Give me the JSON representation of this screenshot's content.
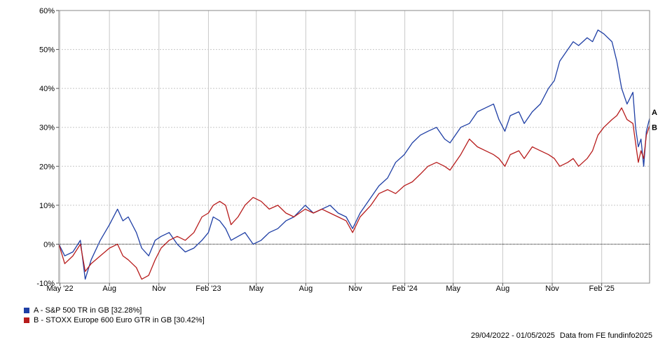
{
  "chart_data": {
    "type": "line",
    "xlim": [
      "2022-04-29",
      "2025-05-01"
    ],
    "ylim": [
      -10,
      60
    ],
    "y_ticks": [
      -10,
      0,
      10,
      20,
      30,
      40,
      50,
      60
    ],
    "y_tick_labels": [
      "-10%",
      "0%",
      "10%",
      "20%",
      "30%",
      "40%",
      "50%",
      "60%"
    ],
    "x_ticks": [
      "2022-05-01",
      "2022-08-01",
      "2022-11-01",
      "2023-02-01",
      "2023-05-01",
      "2023-08-01",
      "2023-11-01",
      "2024-02-01",
      "2024-05-01",
      "2024-08-01",
      "2024-11-01",
      "2025-02-01"
    ],
    "x_tick_labels": [
      "May '22",
      "Aug",
      "Nov",
      "Feb '23",
      "May",
      "Aug",
      "Nov",
      "Feb '24",
      "May",
      "Aug",
      "Nov",
      "Feb '25"
    ],
    "grid": true,
    "legend_position": "bottom-left",
    "series": [
      {
        "name": "A - S&P 500 TR in GB [32.28%]",
        "end_label": "A",
        "color": "#1f3fa5",
        "points": [
          [
            "2022-04-29",
            0
          ],
          [
            "2022-05-10",
            -3
          ],
          [
            "2022-05-25",
            -2
          ],
          [
            "2022-06-08",
            1
          ],
          [
            "2022-06-17",
            -9
          ],
          [
            "2022-06-28",
            -4
          ],
          [
            "2022-07-15",
            1
          ],
          [
            "2022-08-01",
            5
          ],
          [
            "2022-08-16",
            9
          ],
          [
            "2022-08-26",
            6
          ],
          [
            "2022-09-05",
            7
          ],
          [
            "2022-09-20",
            3
          ],
          [
            "2022-09-30",
            -1
          ],
          [
            "2022-10-13",
            -3
          ],
          [
            "2022-10-25",
            1
          ],
          [
            "2022-11-05",
            2
          ],
          [
            "2022-11-20",
            3
          ],
          [
            "2022-12-05",
            0
          ],
          [
            "2022-12-20",
            -2
          ],
          [
            "2023-01-05",
            -1
          ],
          [
            "2023-01-20",
            1
          ],
          [
            "2023-02-01",
            3
          ],
          [
            "2023-02-10",
            7
          ],
          [
            "2023-02-22",
            6
          ],
          [
            "2023-03-05",
            4
          ],
          [
            "2023-03-15",
            1
          ],
          [
            "2023-03-28",
            2
          ],
          [
            "2023-04-10",
            3
          ],
          [
            "2023-04-25",
            0
          ],
          [
            "2023-05-10",
            1
          ],
          [
            "2023-05-25",
            3
          ],
          [
            "2023-06-10",
            4
          ],
          [
            "2023-06-25",
            6
          ],
          [
            "2023-07-10",
            7
          ],
          [
            "2023-07-31",
            10
          ],
          [
            "2023-08-15",
            8
          ],
          [
            "2023-08-31",
            9
          ],
          [
            "2023-09-15",
            10
          ],
          [
            "2023-09-30",
            8
          ],
          [
            "2023-10-15",
            7
          ],
          [
            "2023-10-27",
            4
          ],
          [
            "2023-11-10",
            8
          ],
          [
            "2023-11-30",
            12
          ],
          [
            "2023-12-15",
            15
          ],
          [
            "2023-12-31",
            17
          ],
          [
            "2024-01-15",
            21
          ],
          [
            "2024-01-31",
            23
          ],
          [
            "2024-02-15",
            26
          ],
          [
            "2024-03-01",
            28
          ],
          [
            "2024-03-15",
            29
          ],
          [
            "2024-03-31",
            30
          ],
          [
            "2024-04-15",
            27
          ],
          [
            "2024-04-25",
            26
          ],
          [
            "2024-05-15",
            30
          ],
          [
            "2024-05-31",
            31
          ],
          [
            "2024-06-15",
            34
          ],
          [
            "2024-06-30",
            35
          ],
          [
            "2024-07-15",
            36
          ],
          [
            "2024-07-25",
            32
          ],
          [
            "2024-08-05",
            29
          ],
          [
            "2024-08-15",
            33
          ],
          [
            "2024-08-31",
            34
          ],
          [
            "2024-09-10",
            31
          ],
          [
            "2024-09-25",
            34
          ],
          [
            "2024-10-10",
            36
          ],
          [
            "2024-10-25",
            40
          ],
          [
            "2024-11-05",
            42
          ],
          [
            "2024-11-15",
            47
          ],
          [
            "2024-11-30",
            50
          ],
          [
            "2024-12-10",
            52
          ],
          [
            "2024-12-20",
            51
          ],
          [
            "2025-01-05",
            53
          ],
          [
            "2025-01-15",
            52
          ],
          [
            "2025-01-25",
            55
          ],
          [
            "2025-02-05",
            54
          ],
          [
            "2025-02-20",
            52
          ],
          [
            "2025-03-01",
            47
          ],
          [
            "2025-03-10",
            40
          ],
          [
            "2025-03-20",
            36
          ],
          [
            "2025-03-31",
            39
          ],
          [
            "2025-04-05",
            30
          ],
          [
            "2025-04-10",
            25
          ],
          [
            "2025-04-15",
            27
          ],
          [
            "2025-04-20",
            20
          ],
          [
            "2025-04-25",
            29
          ],
          [
            "2025-05-01",
            32.28
          ]
        ]
      },
      {
        "name": "B - STOXX Europe 600 Euro GTR in GB [30.42%]",
        "end_label": "B",
        "color": "#b71c1c",
        "points": [
          [
            "2022-04-29",
            0
          ],
          [
            "2022-05-10",
            -5
          ],
          [
            "2022-05-25",
            -3
          ],
          [
            "2022-06-08",
            0
          ],
          [
            "2022-06-17",
            -7
          ],
          [
            "2022-06-28",
            -5
          ],
          [
            "2022-07-15",
            -3
          ],
          [
            "2022-08-01",
            -1
          ],
          [
            "2022-08-16",
            0
          ],
          [
            "2022-08-26",
            -3
          ],
          [
            "2022-09-05",
            -4
          ],
          [
            "2022-09-20",
            -6
          ],
          [
            "2022-09-30",
            -9
          ],
          [
            "2022-10-13",
            -8
          ],
          [
            "2022-10-25",
            -4
          ],
          [
            "2022-11-05",
            -1
          ],
          [
            "2022-11-20",
            1
          ],
          [
            "2022-12-05",
            2
          ],
          [
            "2022-12-20",
            1
          ],
          [
            "2023-01-05",
            3
          ],
          [
            "2023-01-20",
            7
          ],
          [
            "2023-02-01",
            8
          ],
          [
            "2023-02-10",
            10
          ],
          [
            "2023-02-22",
            11
          ],
          [
            "2023-03-05",
            10
          ],
          [
            "2023-03-15",
            5
          ],
          [
            "2023-03-28",
            7
          ],
          [
            "2023-04-10",
            10
          ],
          [
            "2023-04-25",
            12
          ],
          [
            "2023-05-10",
            11
          ],
          [
            "2023-05-25",
            9
          ],
          [
            "2023-06-10",
            10
          ],
          [
            "2023-06-25",
            8
          ],
          [
            "2023-07-10",
            7
          ],
          [
            "2023-07-31",
            9
          ],
          [
            "2023-08-15",
            8
          ],
          [
            "2023-08-31",
            9
          ],
          [
            "2023-09-15",
            8
          ],
          [
            "2023-09-30",
            7
          ],
          [
            "2023-10-15",
            6
          ],
          [
            "2023-10-27",
            3
          ],
          [
            "2023-11-10",
            7
          ],
          [
            "2023-11-30",
            10
          ],
          [
            "2023-12-15",
            13
          ],
          [
            "2023-12-31",
            14
          ],
          [
            "2024-01-15",
            13
          ],
          [
            "2024-01-31",
            15
          ],
          [
            "2024-02-15",
            16
          ],
          [
            "2024-03-01",
            18
          ],
          [
            "2024-03-15",
            20
          ],
          [
            "2024-03-31",
            21
          ],
          [
            "2024-04-15",
            20
          ],
          [
            "2024-04-25",
            19
          ],
          [
            "2024-05-15",
            23
          ],
          [
            "2024-05-31",
            27
          ],
          [
            "2024-06-15",
            25
          ],
          [
            "2024-06-30",
            24
          ],
          [
            "2024-07-15",
            23
          ],
          [
            "2024-07-25",
            22
          ],
          [
            "2024-08-05",
            20
          ],
          [
            "2024-08-15",
            23
          ],
          [
            "2024-08-31",
            24
          ],
          [
            "2024-09-10",
            22
          ],
          [
            "2024-09-25",
            25
          ],
          [
            "2024-10-10",
            24
          ],
          [
            "2024-10-25",
            23
          ],
          [
            "2024-11-05",
            22
          ],
          [
            "2024-11-15",
            20
          ],
          [
            "2024-11-30",
            21
          ],
          [
            "2024-12-10",
            22
          ],
          [
            "2024-12-20",
            20
          ],
          [
            "2025-01-05",
            22
          ],
          [
            "2025-01-15",
            24
          ],
          [
            "2025-01-25",
            28
          ],
          [
            "2025-02-05",
            30
          ],
          [
            "2025-02-20",
            32
          ],
          [
            "2025-03-01",
            33
          ],
          [
            "2025-03-10",
            35
          ],
          [
            "2025-03-20",
            32
          ],
          [
            "2025-03-31",
            31
          ],
          [
            "2025-04-05",
            26
          ],
          [
            "2025-04-10",
            21
          ],
          [
            "2025-04-15",
            24
          ],
          [
            "2025-04-20",
            22
          ],
          [
            "2025-04-25",
            28
          ],
          [
            "2025-05-01",
            30.42
          ]
        ]
      }
    ]
  },
  "footer": {
    "date_range": "29/04/2022 - 01/05/2025",
    "source": "Data from FE fundinfo2025"
  }
}
